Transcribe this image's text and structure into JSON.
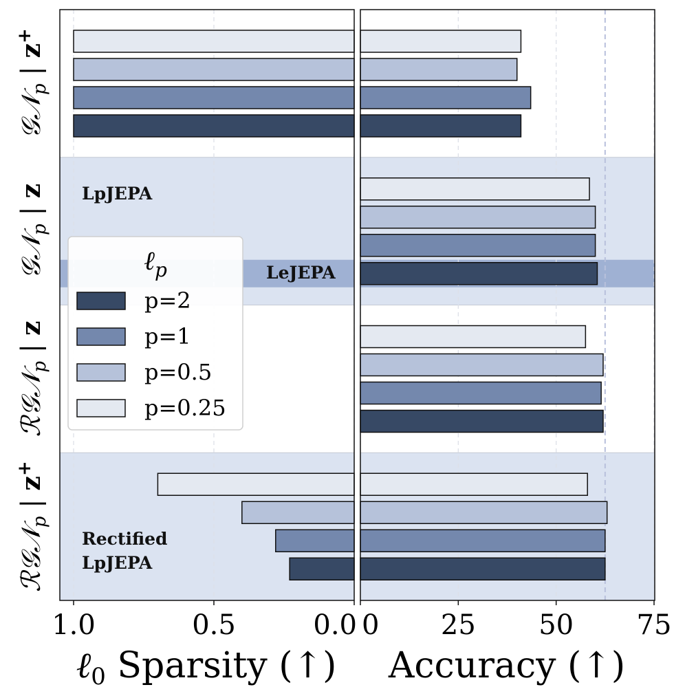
{
  "chart_data": {
    "type": "bar",
    "orientation": "horizontal",
    "colors": {
      "p=2": "#374965",
      "p=1": "#7488ad",
      "p=0.5": "#b6c2da",
      "p=0.25": "#e4e9f1",
      "band": "#dbe3f1",
      "lejepa_band": "#9fb1d3",
      "ref_line": "#b8c0dc"
    },
    "groups": [
      {
        "label": "GN_p | z+",
        "label_parts": {
          "main": "𝒢𝒩",
          "sub": "p",
          "bar": "|",
          "var": "z",
          "sup": "+"
        }
      },
      {
        "label": "GN_p | z",
        "label_parts": {
          "main": "𝒢𝒩",
          "sub": "p",
          "bar": "|",
          "var": "z",
          "sup": ""
        }
      },
      {
        "label": "RGN_p | z",
        "label_parts": {
          "main": "ℛ𝒢𝒩",
          "sub": "p",
          "bar": "|",
          "var": "z",
          "sup": ""
        }
      },
      {
        "label": "RGN_p | z+",
        "label_parts": {
          "main": "ℛ𝒢𝒩",
          "sub": "p",
          "bar": "|",
          "var": "z",
          "sup": "+"
        }
      }
    ],
    "series_order": [
      "p=0.25",
      "p=0.5",
      "p=1",
      "p=2"
    ],
    "left_panel": {
      "xlabel_parts": {
        "l": "ℓ",
        "sub": "0",
        "rest": " Sparsity (↑)"
      },
      "xlim": [
        1.0,
        0.0
      ],
      "xticks": [
        "1.0",
        "0.5",
        "0.0"
      ],
      "xtick_values": [
        1.0,
        0.5,
        0.0
      ],
      "values": [
        [
          1.0,
          1.0,
          1.0,
          1.0
        ],
        [
          0.0,
          0.0,
          0.0,
          0.0
        ],
        [
          0.0,
          0.0,
          0.0,
          0.0
        ],
        [
          0.7,
          0.4,
          0.28,
          0.23
        ]
      ]
    },
    "right_panel": {
      "xlabel": "Accuracy (↑)",
      "xlim": [
        0,
        75
      ],
      "xticks": [
        "0",
        "25",
        "50",
        "75"
      ],
      "xtick_values": [
        0,
        25,
        50,
        75
      ],
      "reference_line": 62.5,
      "values": [
        [
          41,
          40,
          43.5,
          41
        ],
        [
          58.5,
          60,
          60,
          60.5
        ],
        [
          57.5,
          62,
          61.5,
          62
        ],
        [
          58,
          63,
          62.5,
          62.5
        ]
      ]
    },
    "legend": {
      "title_parts": {
        "l": "ℓ",
        "sub": "p"
      },
      "entries": [
        "p=2",
        "p=1",
        "p=0.5",
        "p=0.25"
      ]
    },
    "annotations": {
      "lpjepa": "LpJEPA",
      "lejepa": "LeJEPA",
      "rectified_line1": "Rectified",
      "rectified_line2": "LpJEPA"
    }
  }
}
